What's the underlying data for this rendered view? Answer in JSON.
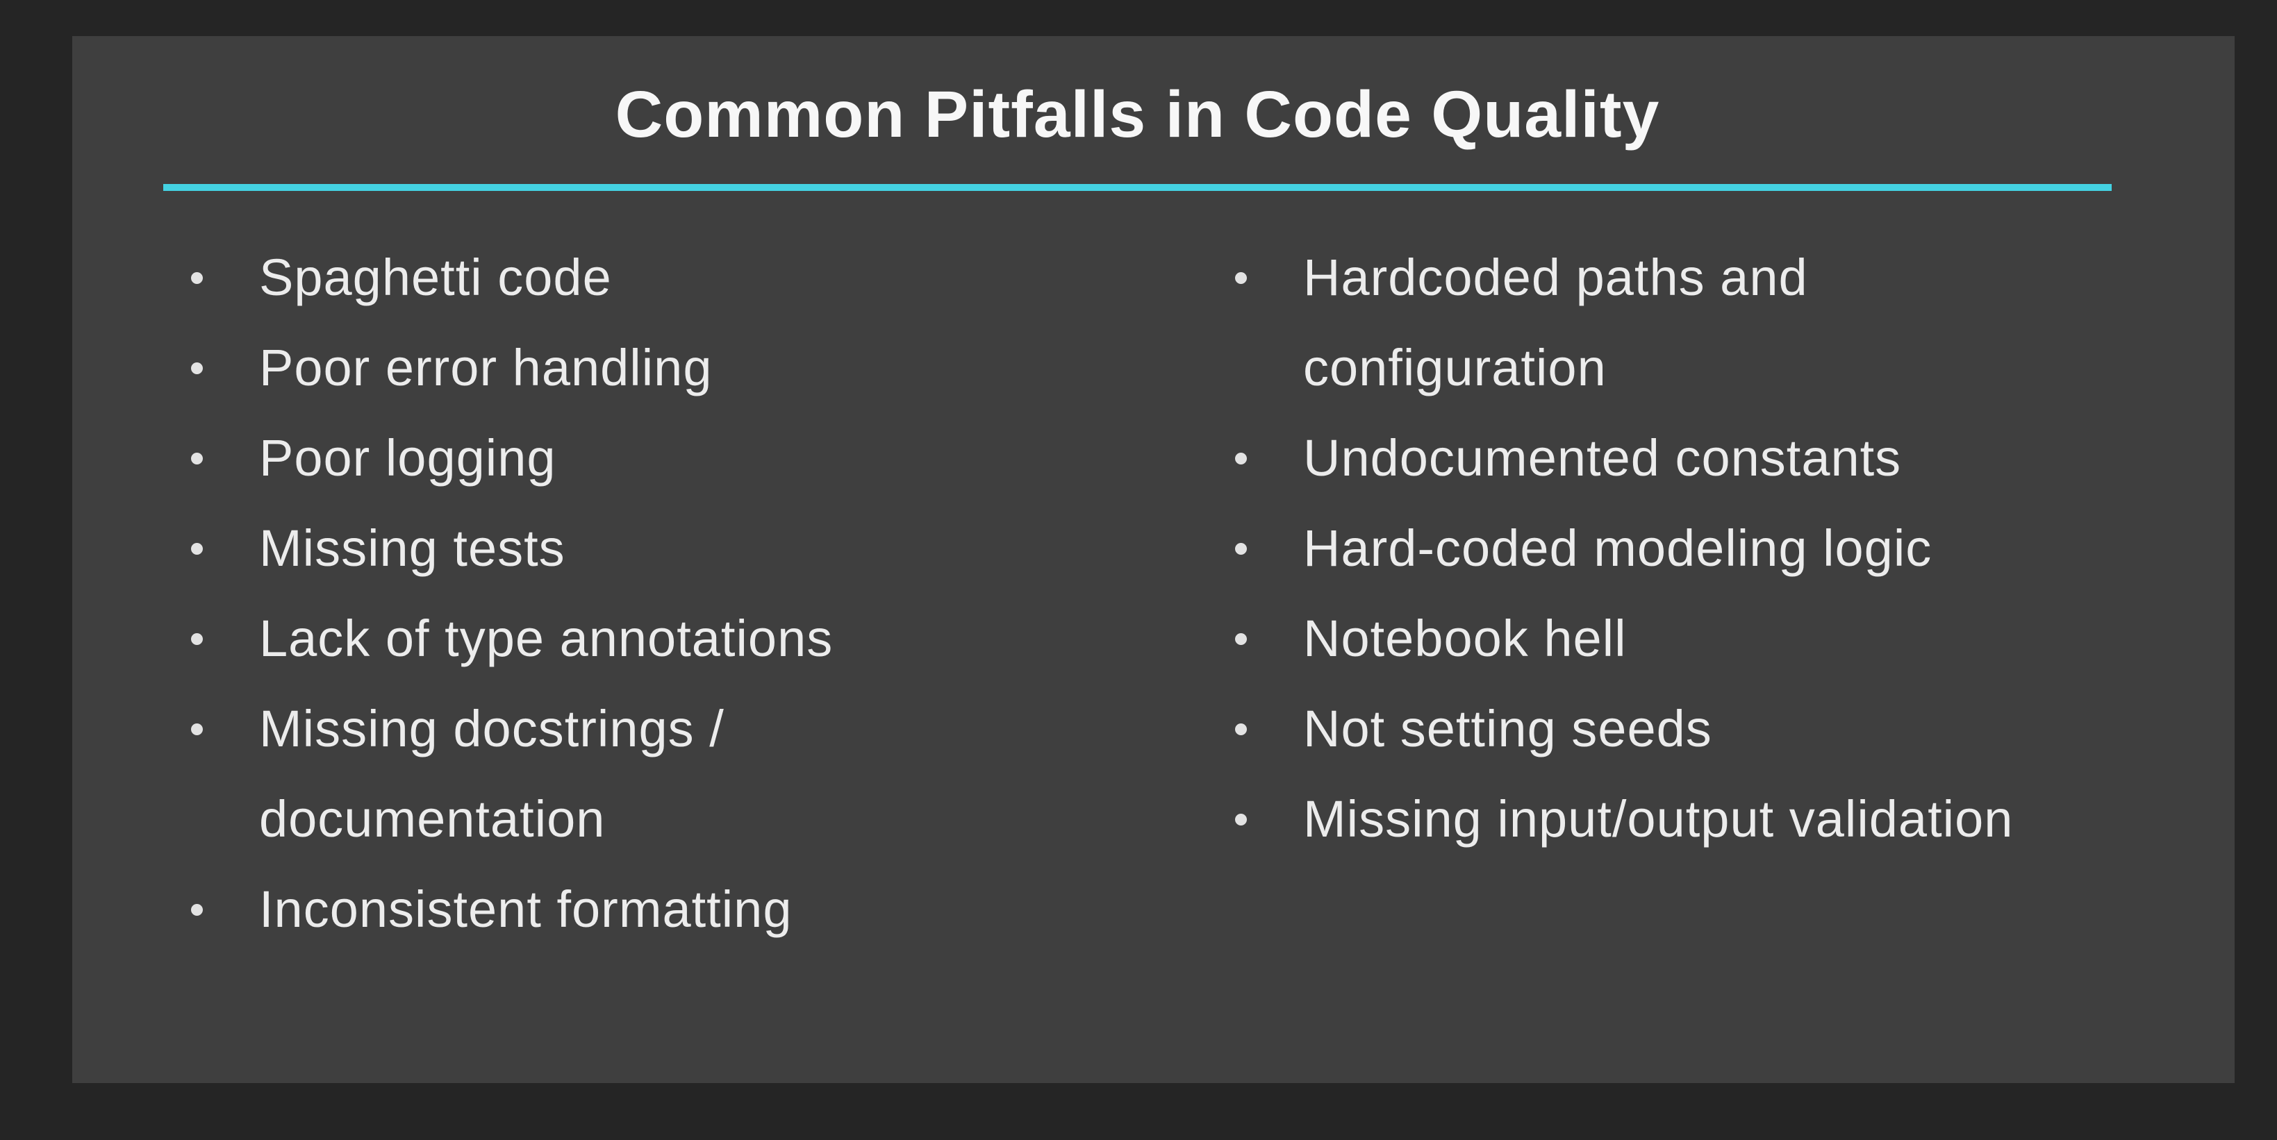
{
  "slide": {
    "title": "Common Pitfalls in Code Quality",
    "accent_color": "#44D2E2",
    "background_color": "#252525",
    "card_color": "#3F3F3F",
    "title_color": "#F7F7F7",
    "text_color": "#ECECEC",
    "bullet_icon": "dot-icon",
    "columns": [
      {
        "items": [
          "Spaghetti code",
          "Poor error handling",
          "Poor logging",
          "Missing tests",
          "Lack of type annotations",
          "Missing docstrings /\ndocumentation",
          "Inconsistent formatting"
        ]
      },
      {
        "items": [
          "Hardcoded paths and\nconfiguration",
          "Undocumented constants",
          "Hard-coded modeling logic",
          "Notebook hell",
          "Not setting seeds",
          "Missing input/output validation"
        ]
      }
    ]
  }
}
